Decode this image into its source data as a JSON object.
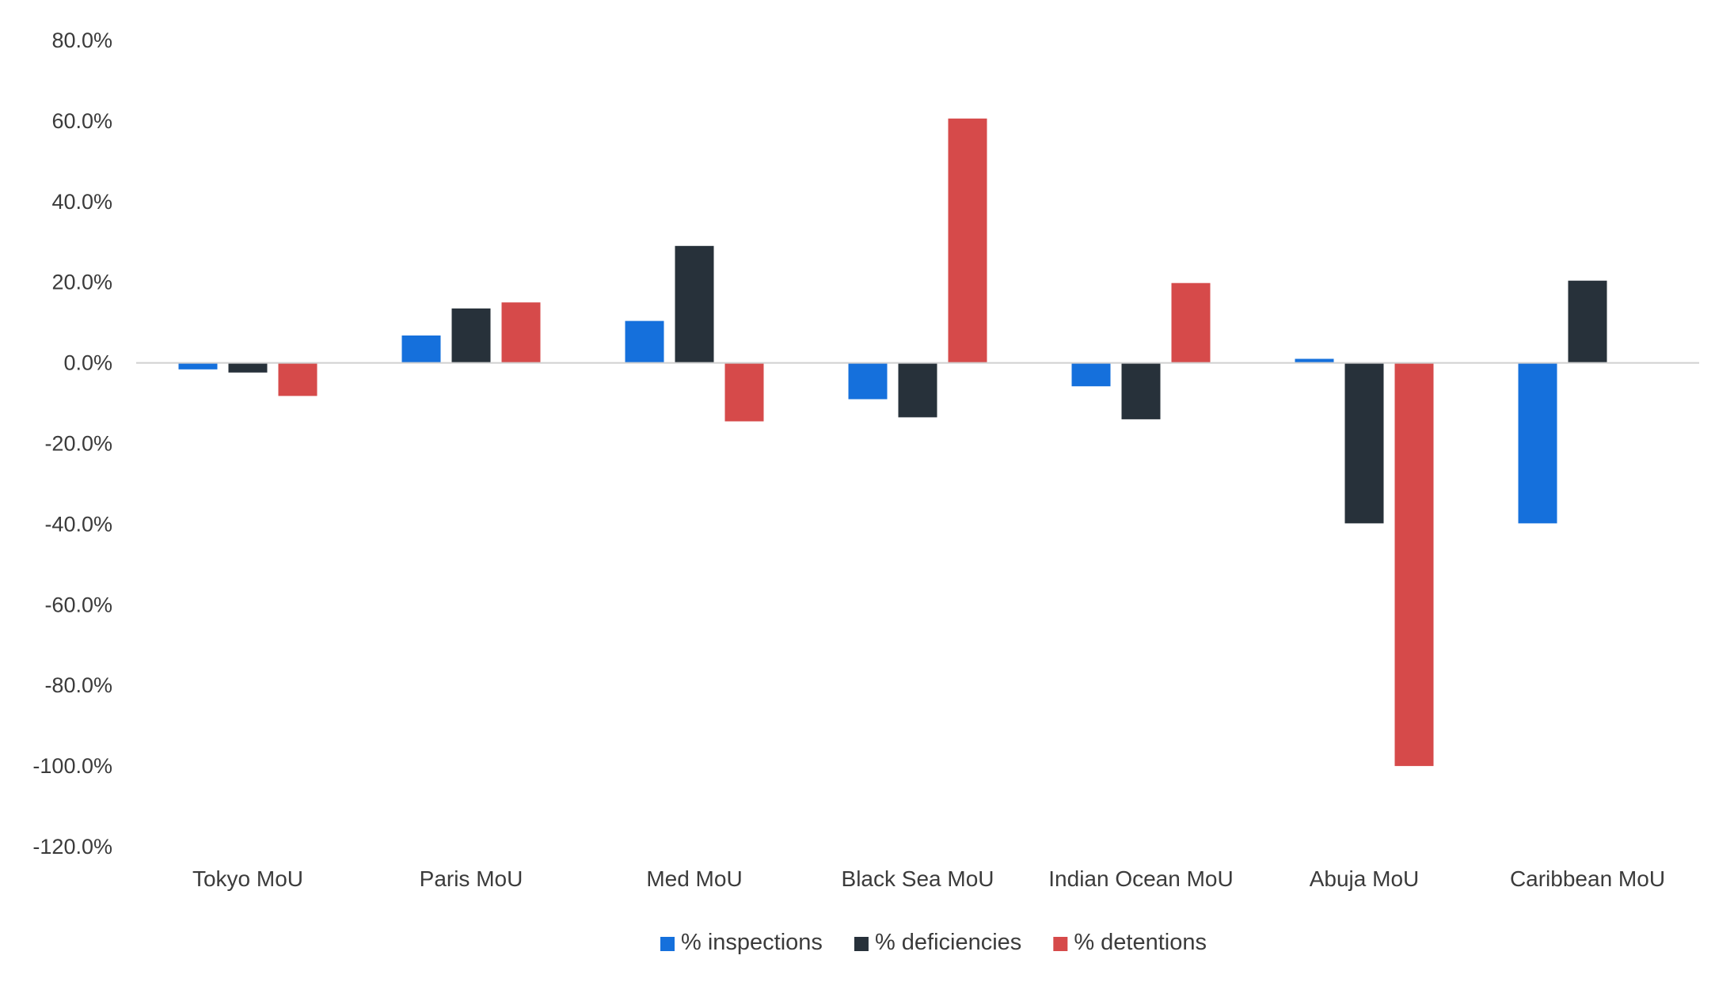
{
  "chart_data": {
    "type": "bar",
    "title": "",
    "xlabel": "",
    "ylabel": "",
    "categories": [
      "Tokyo MoU",
      "Paris MoU",
      "Med MoU",
      "Black Sea MoU",
      "Indian Ocean MoU",
      "Abuja MoU",
      "Caribbean MoU"
    ],
    "series": [
      {
        "name": "% inspections",
        "color": "#1570dc",
        "values": [
          -1.6,
          6.8,
          10.4,
          -9.0,
          -5.8,
          1.0,
          -39.8
        ]
      },
      {
        "name": "% deficiencies",
        "color": "#27313a",
        "values": [
          -2.4,
          13.5,
          29.0,
          -13.5,
          -14.0,
          -39.8,
          20.4
        ]
      },
      {
        "name": "% detentions",
        "color": "#d64a4a",
        "values": [
          -8.2,
          15.0,
          -14.5,
          60.6,
          19.8,
          -100.0,
          null
        ]
      }
    ],
    "ylim": [
      -120,
      80
    ],
    "yticks": [
      80,
      60,
      40,
      20,
      0,
      -20,
      -40,
      -60,
      -80,
      -100,
      -120
    ],
    "ytick_labels": [
      "80.0%",
      "60.0%",
      "40.0%",
      "20.0%",
      "0.0%",
      "-20.0%",
      "-40.0%",
      "-60.0%",
      "-80.0%",
      "-100.0%",
      "-120.0%"
    ],
    "grid": false,
    "legend": "bottom"
  }
}
